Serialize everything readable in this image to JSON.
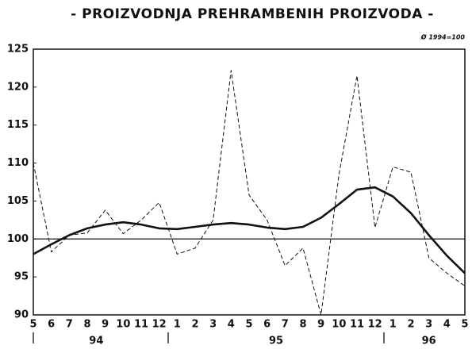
{
  "chart_data": {
    "type": "line",
    "title": "- PROIZVODNJA PREHRAMBENIH PROIZVODA -",
    "annotation": "Ø 1994=100",
    "categories": [
      "5",
      "6",
      "7",
      "8",
      "9",
      "10",
      "11",
      "12",
      "1",
      "2",
      "3",
      "4",
      "5",
      "6",
      "7",
      "8",
      "9",
      "10",
      "11",
      "12",
      "1",
      "2",
      "3",
      "4",
      "5"
    ],
    "year_groups": [
      "94",
      "95",
      "96"
    ],
    "series": [
      {
        "color": "#111111",
        "line_style": "dashed",
        "values": [
          110,
          98.3,
          100.5,
          100.8,
          103.8,
          100.7,
          102.5,
          104.8,
          98,
          98.8,
          102.5,
          122.2,
          105.8,
          102.5,
          96.5,
          98.8,
          90,
          108.5,
          121.5,
          101.5,
          109.5,
          108.8,
          97.5,
          95.5,
          93.8
        ]
      },
      {
        "color": "#111111",
        "line_style": "solid",
        "values": [
          98,
          99.3,
          100.5,
          101.4,
          101.9,
          102.2,
          101.9,
          101.4,
          101.3,
          101.6,
          101.9,
          102.1,
          101.9,
          101.5,
          101.3,
          101.6,
          102.8,
          104.6,
          106.5,
          106.8,
          105.6,
          103.4,
          100.5,
          97.8,
          95.5
        ]
      }
    ],
    "reference_line": 100,
    "ylim": [
      90,
      125
    ],
    "yticks": [
      90,
      95,
      100,
      105,
      110,
      115,
      120,
      125
    ],
    "grid": false
  }
}
